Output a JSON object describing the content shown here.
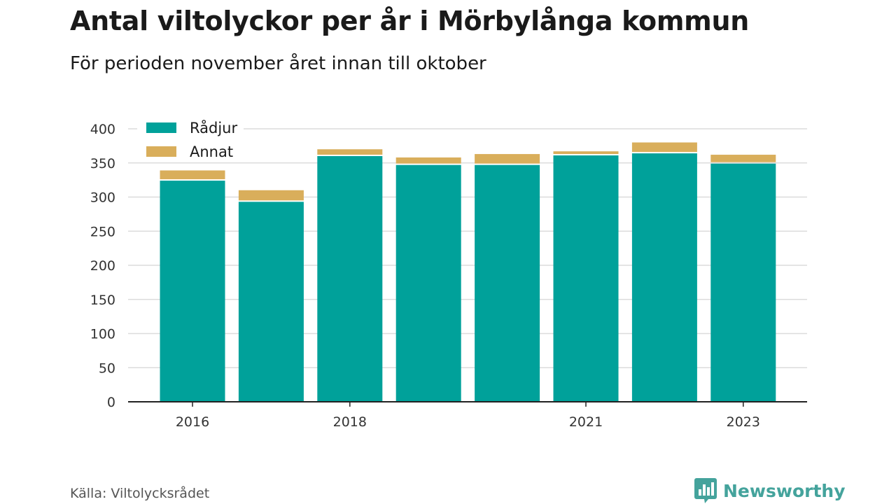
{
  "header": {
    "title": "Antal viltolyckor per år i Mörbylånga kommun",
    "subtitle": "För perioden november året innan till oktober"
  },
  "footer": {
    "source": "Källa: Viltolycksrådet",
    "brand": "Newsworthy",
    "brand_icon": "bar-chart-icon"
  },
  "colors": {
    "radjur": "#00a19a",
    "annat": "#d9ae5b",
    "brand": "#44a39c"
  },
  "chart_data": {
    "type": "bar",
    "stacked": true,
    "categories": [
      "2016",
      "2017",
      "2018",
      "2019",
      "2020",
      "2021",
      "2022",
      "2023"
    ],
    "x_tick_labels": [
      "2016",
      "2018",
      "2021",
      "2023"
    ],
    "series": [
      {
        "name": "Rådjur",
        "values": [
          324,
          293,
          360,
          347,
          347,
          361,
          364,
          349
        ]
      },
      {
        "name": "Annat",
        "values": [
          15,
          17,
          10,
          11,
          16,
          6,
          16,
          13
        ]
      }
    ],
    "ylim": [
      0,
      400
    ],
    "yticks": [
      0,
      50,
      100,
      150,
      200,
      250,
      300,
      350,
      400
    ],
    "grid": true,
    "legend_position": "top-left"
  }
}
